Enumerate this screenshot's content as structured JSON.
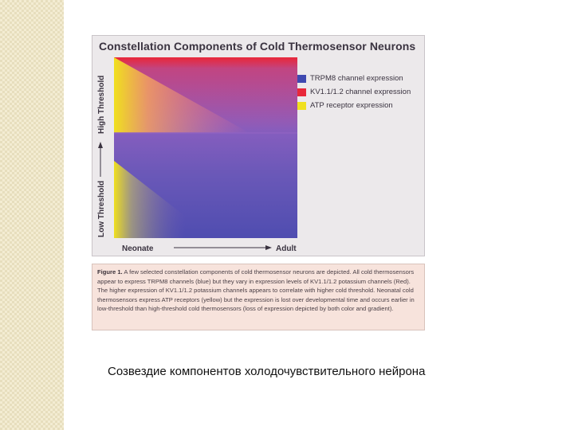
{
  "slide": {
    "caption_ru": "Созвездие компонентов холодочувствительного нейрона"
  },
  "figure": {
    "title": "Constellation Components of Cold Thermosensor Neurons",
    "y_axis": {
      "low_label": "Low Threshold",
      "high_label": "High Threshold"
    },
    "x_axis": {
      "left_label": "Neonate",
      "right_label": "Adult"
    },
    "legend": [
      {
        "label": "TRPM8 channel expression",
        "color": "#3f49b0"
      },
      {
        "label": "KV1.1/1.2 channel expression",
        "color": "#e8283a"
      },
      {
        "label": "ATP receptor expression",
        "color": "#f0e01e"
      }
    ],
    "colors": {
      "trpm8": "#3f49b0",
      "kv": "#e8283a",
      "atp": "#f0e01e"
    }
  },
  "caption": {
    "figure_label": "Figure 1.",
    "text": "A few selected constellation components of cold thermosensor neurons are depicted. All cold thermosensors appear to express TRPM8 channels (blue) but they vary in expression levels of KV1.1/1.2 potassium channels (Red). The higher expression of KV1.1/1.2 potassium channels appears to correlate with higher cold threshold. Neonatal cold thermosensors express ATP receptors (yellow) but the expression is lost over developmental time and occurs earlier in low-threshold than high-threshold cold thermosensors (loss of expression depicted by both color and gradient)."
  }
}
